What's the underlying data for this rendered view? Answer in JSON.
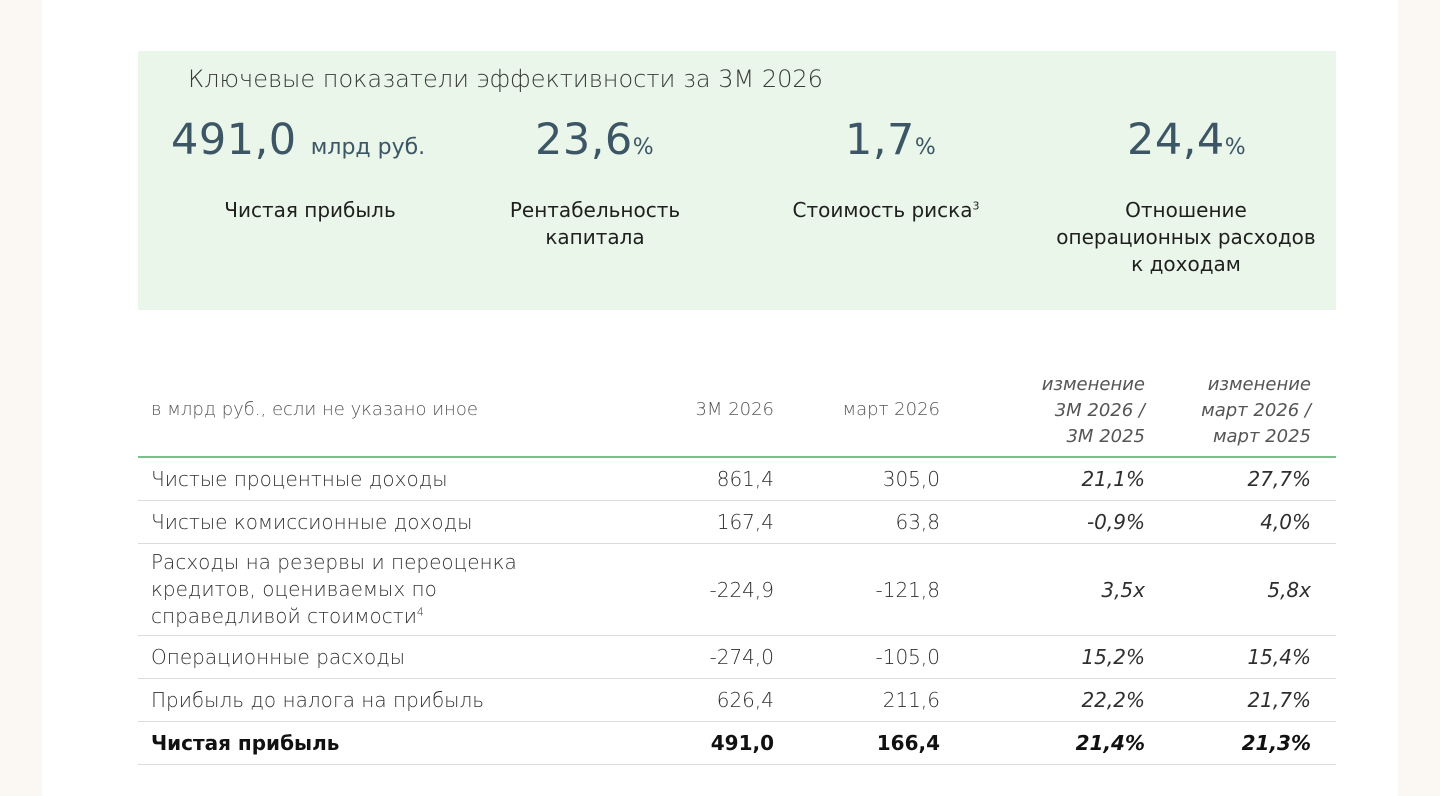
{
  "kpi": {
    "title": "Ключевые показатели эффективности за 3М 2026",
    "items": [
      {
        "value": "491,0",
        "unit": "млрд руб.",
        "label_lines": [
          "Чистая прибыль"
        ],
        "footnote": ""
      },
      {
        "value": "23,6",
        "unit": "%",
        "label_lines": [
          "Рентабельность",
          "капитала"
        ],
        "footnote": ""
      },
      {
        "value": "1,7",
        "unit": "%",
        "label_lines": [
          "Стоимость риска"
        ],
        "footnote": "3"
      },
      {
        "value": "24,4",
        "unit": "%",
        "label_lines": [
          "Отношение",
          "операционных расходов",
          "к доходам"
        ],
        "footnote": ""
      }
    ]
  },
  "table": {
    "header": {
      "label": "в млрд руб., если не указано иное",
      "col1": "3М 2026",
      "col2": "март 2026",
      "col3_lines": [
        "изменение",
        "3М 2026 /",
        "3М 2025"
      ],
      "col4_lines": [
        "изменение",
        "март 2026 /",
        "март 2025"
      ]
    },
    "rows": [
      {
        "label_lines": [
          "Чистые процентные доходы"
        ],
        "footnote": "",
        "v1": "861,4",
        "v2": "305,0",
        "v3": "21,1%",
        "v4": "27,7%"
      },
      {
        "label_lines": [
          "Чистые комиссионные доходы"
        ],
        "footnote": "",
        "v1": "167,4",
        "v2": "63,8",
        "v3": "-0,9%",
        "v4": "4,0%"
      },
      {
        "label_lines": [
          "Расходы на резервы и переоценка",
          "кредитов, оцениваемых по",
          "справедливой стоимости"
        ],
        "footnote": "4",
        "v1": "-224,9",
        "v2": "-121,8",
        "v3": "3,5x",
        "v4": "5,8x"
      },
      {
        "label_lines": [
          "Операционные расходы"
        ],
        "footnote": "",
        "v1": "-274,0",
        "v2": "-105,0",
        "v3": "15,2%",
        "v4": "15,4%"
      },
      {
        "label_lines": [
          "Прибыль до налога на прибыль"
        ],
        "footnote": "",
        "v1": "626,4",
        "v2": "211,6",
        "v3": "22,2%",
        "v4": "21,7%"
      },
      {
        "label_lines": [
          "Чистая прибыль"
        ],
        "footnote": "",
        "v1": "491,0",
        "v2": "166,4",
        "v3": "21,4%",
        "v4": "21,3%"
      }
    ]
  }
}
